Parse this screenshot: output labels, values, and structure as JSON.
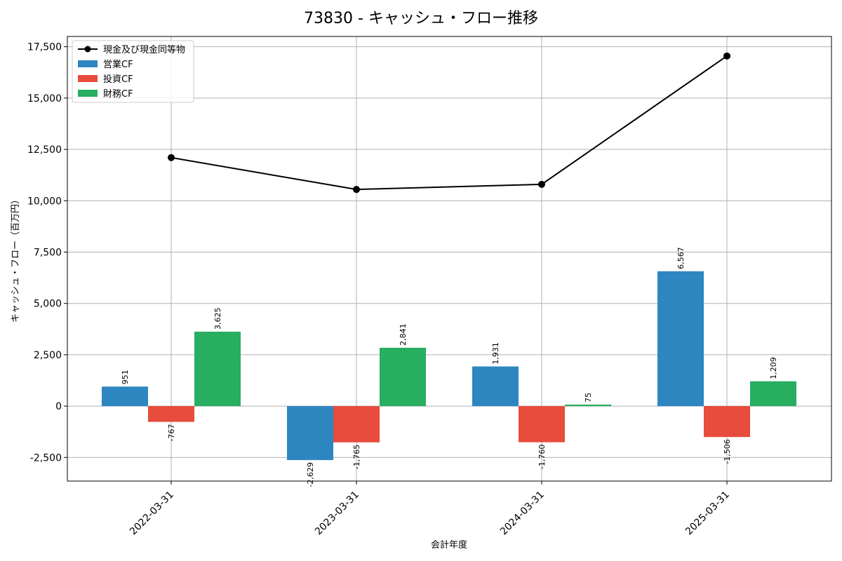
{
  "chart_data": {
    "type": "bar",
    "title": "73830 - キャッシュ・フロー推移",
    "xlabel": "会計年度",
    "ylabel": "キャッシュ・フロー（百万円）",
    "categories": [
      "2022-03-31",
      "2023-03-31",
      "2024-03-31",
      "2025-03-31"
    ],
    "series": [
      {
        "name": "営業CF",
        "color": "#2e86c1",
        "values": [
          951,
          -2629,
          1931,
          6567
        ],
        "labels": [
          "951",
          "-2,629",
          "1,931",
          "6,567"
        ]
      },
      {
        "name": "投資CF",
        "color": "#e74c3c",
        "values": [
          -767,
          -1765,
          -1760,
          -1506
        ],
        "labels": [
          "-767",
          "-1,765",
          "-1,760",
          "-1,506"
        ]
      },
      {
        "name": "財務CF",
        "color": "#27ae60",
        "values": [
          3625,
          2841,
          75,
          1209
        ],
        "labels": [
          "3,625",
          "2,841",
          "75",
          "1,209"
        ]
      }
    ],
    "line_series": {
      "name": "現金及び現金同等物",
      "color": "#000000",
      "values": [
        12100,
        10550,
        10800,
        17050
      ]
    },
    "yticks": [
      -2500,
      0,
      2500,
      5000,
      7500,
      10000,
      12500,
      15000,
      17500
    ],
    "ytick_labels": [
      "-2,500",
      "0",
      "2,500",
      "5,000",
      "7,500",
      "10,000",
      "12,500",
      "15,000",
      "17,500"
    ],
    "ylim": [
      -3650,
      18000
    ],
    "grid": true,
    "legend_position": "top-left"
  }
}
